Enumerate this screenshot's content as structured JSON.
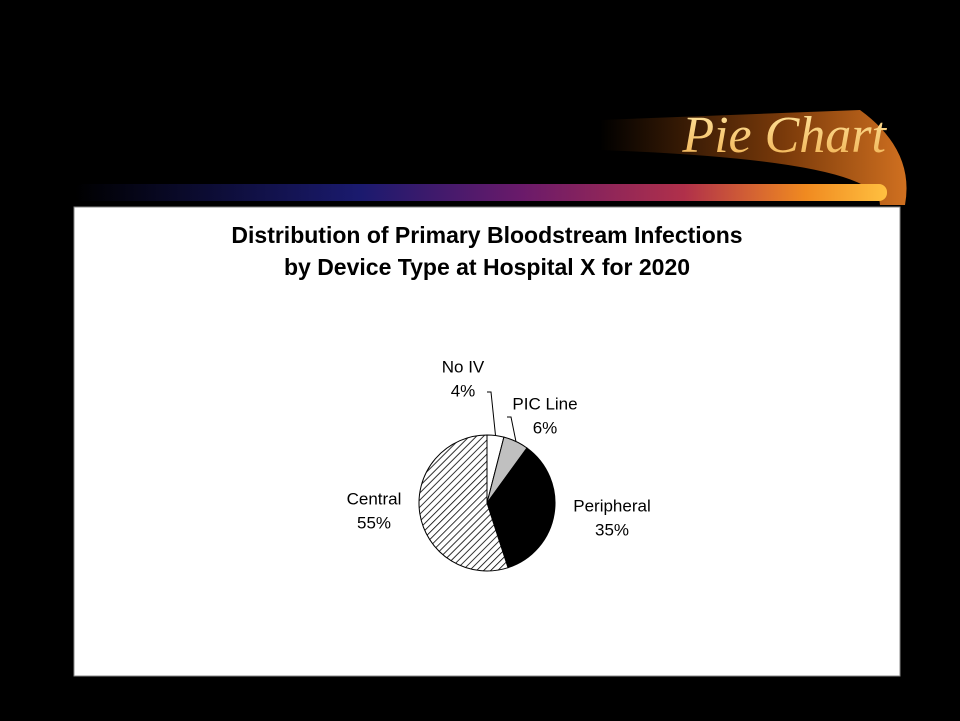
{
  "slide_title": "Pie Chart",
  "chart_data": {
    "type": "pie",
    "title": [
      "Distribution of Primary Bloodstream Infections",
      "by Device Type at Hospital X for 2020"
    ],
    "categories": [
      "No IV",
      "PIC Line",
      "Peripheral",
      "Central"
    ],
    "values": [
      4,
      6,
      35,
      55
    ],
    "value_labels": [
      "4%",
      "6%",
      "35%",
      "55%"
    ],
    "colors": [
      "#ffffff",
      "#c0c0c0",
      "#000000",
      "#ffffff"
    ],
    "hatch": [
      false,
      false,
      false,
      true
    ]
  }
}
